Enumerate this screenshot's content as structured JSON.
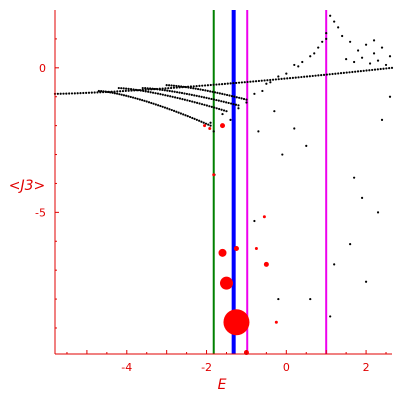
{
  "chart_data": {
    "type": "scatter",
    "title": "",
    "xlabel": "E",
    "ylabel": "<J3>",
    "xlim": [
      -5.8,
      2.65
    ],
    "ylim": [
      -9.9,
      2.0
    ],
    "x_ticks": [
      -4,
      -2,
      0,
      2
    ],
    "x_tick_labels": [
      "-4",
      "-2",
      "0",
      "2"
    ],
    "y_ticks": [
      0,
      -5
    ],
    "y_tick_labels": [
      "0",
      "-5"
    ],
    "grid": false,
    "legend": "none",
    "colors": {
      "axis": "#e00000",
      "points": "#000000",
      "highlight": "#ff0000",
      "line_green": "#008000",
      "line_blue": "#0000ff",
      "line_magenta": "#ee00ee"
    },
    "vertical_lines": [
      {
        "x": -1.82,
        "color": "#008000",
        "weight": "normal"
      },
      {
        "x": -1.32,
        "color": "#0000ff",
        "weight": "bold"
      },
      {
        "x": -0.98,
        "color": "#ee00ee",
        "weight": "normal"
      },
      {
        "x": 1.0,
        "color": "#ee00ee",
        "weight": "normal"
      }
    ],
    "black_bands": [
      {
        "x_start": -5.8,
        "y_start": -0.9,
        "x_end": 2.65,
        "y_end": 0.0,
        "count": 120
      },
      {
        "x_start": -4.2,
        "y_start": -0.7,
        "x_end": -1.5,
        "y_end": -1.5,
        "count": 45
      },
      {
        "x_start": -3.6,
        "y_start": -0.7,
        "x_end": -1.2,
        "y_end": -1.3,
        "count": 40
      },
      {
        "x_start": -3.0,
        "y_start": -0.6,
        "x_end": -1.0,
        "y_end": -1.1,
        "count": 34
      },
      {
        "x_start": -4.7,
        "y_start": -0.8,
        "x_end": -1.9,
        "y_end": -2.0,
        "count": 50
      }
    ],
    "black_points": [
      [
        -1.9,
        -1.9
      ],
      [
        -1.82,
        -2.2
      ],
      [
        -1.6,
        -1.6
      ],
      [
        -1.4,
        -1.8
      ],
      [
        -1.2,
        -1.4
      ],
      [
        -1.0,
        -1.2
      ],
      [
        -0.8,
        -0.9
      ],
      [
        -0.6,
        -0.8
      ],
      [
        -0.4,
        -0.5
      ],
      [
        -0.2,
        -0.3
      ],
      [
        0.0,
        -0.2
      ],
      [
        0.2,
        0.1
      ],
      [
        0.4,
        0.2
      ],
      [
        0.6,
        0.4
      ],
      [
        0.8,
        0.7
      ],
      [
        1.0,
        1.2
      ],
      [
        1.2,
        1.6
      ],
      [
        1.4,
        1.1
      ],
      [
        1.6,
        0.9
      ],
      [
        1.8,
        0.6
      ],
      [
        2.0,
        0.8
      ],
      [
        2.2,
        0.5
      ],
      [
        2.4,
        0.7
      ],
      [
        2.6,
        0.4
      ],
      [
        1.1,
        1.8
      ],
      [
        1.3,
        1.4
      ],
      [
        0.9,
        0.9
      ],
      [
        0.7,
        0.5
      ],
      [
        1.5,
        0.3
      ],
      [
        1.7,
        0.2
      ],
      [
        1.9,
        0.35
      ],
      [
        2.1,
        0.15
      ],
      [
        2.3,
        0.25
      ],
      [
        2.5,
        0.1
      ],
      [
        -0.3,
        -1.5
      ],
      [
        0.2,
        -2.1
      ],
      [
        -0.7,
        -2.2
      ],
      [
        0.5,
        -2.7
      ],
      [
        -0.1,
        -3.0
      ],
      [
        1.7,
        -3.8
      ],
      [
        1.9,
        -4.5
      ],
      [
        2.3,
        -5.0
      ],
      [
        1.6,
        -6.1
      ],
      [
        1.2,
        -6.8
      ],
      [
        2.0,
        -7.4
      ],
      [
        -0.8,
        -5.3
      ],
      [
        -0.2,
        -8.0
      ],
      [
        0.6,
        -8.0
      ],
      [
        1.1,
        -8.6
      ],
      [
        2.6,
        -1.0
      ],
      [
        2.4,
        -1.8
      ],
      [
        -1.8,
        -3.7
      ],
      [
        2.2,
        0.95
      ],
      [
        1.0,
        1.0
      ],
      [
        0.3,
        0.05
      ],
      [
        -0.5,
        -0.55
      ]
    ],
    "red_markers": [
      {
        "x": -2.05,
        "y": -2.0,
        "size": "tiny"
      },
      {
        "x": -1.92,
        "y": -2.1,
        "size": "tiny"
      },
      {
        "x": -1.6,
        "y": -2.0,
        "size": "small"
      },
      {
        "x": -1.82,
        "y": -3.7,
        "size": "tiny"
      },
      {
        "x": -0.55,
        "y": -5.15,
        "size": "tiny"
      },
      {
        "x": -0.75,
        "y": -6.25,
        "size": "tiny"
      },
      {
        "x": -1.25,
        "y": -6.25,
        "size": "small"
      },
      {
        "x": -1.6,
        "y": -6.4,
        "size": "medium"
      },
      {
        "x": -0.5,
        "y": -6.8,
        "size": "small"
      },
      {
        "x": -1.5,
        "y": -7.45,
        "size": "large"
      },
      {
        "x": -1.25,
        "y": -8.8,
        "size": "huge"
      },
      {
        "x": -0.25,
        "y": -8.8,
        "size": "tiny"
      },
      {
        "x": -1.0,
        "y": -9.85,
        "size": "small"
      }
    ]
  }
}
